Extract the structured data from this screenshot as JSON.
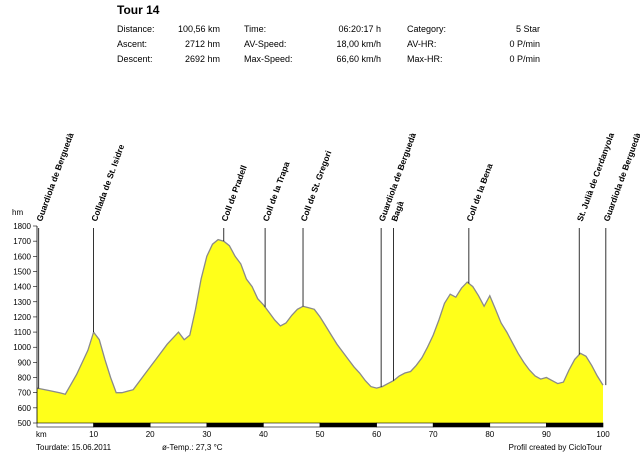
{
  "header": {
    "title": "Tour 14",
    "stats": [
      {
        "label": "Distance:",
        "value": "100,56 km"
      },
      {
        "label": "Ascent:",
        "value": "2712 hm"
      },
      {
        "label": "Descent:",
        "value": "2692 hm"
      },
      {
        "label": "Time:",
        "value": "06:20:17 h"
      },
      {
        "label": "AV-Speed:",
        "value": "18,00 km/h"
      },
      {
        "label": "Max-Speed:",
        "value": "66,60 km/h"
      },
      {
        "label": "Category:",
        "value": "5 Star"
      },
      {
        "label": "AV-HR:",
        "value": "0 P/min"
      },
      {
        "label": "Max-HR:",
        "value": "0 P/min"
      }
    ]
  },
  "footer": {
    "tourdate": "Tourdate: 15.06.2011",
    "temp": "ø-Temp.: 27,3 °C",
    "credit": "Profil created by CicloTour"
  },
  "chart_data": {
    "type": "area",
    "xlabel": "km",
    "ylabel": "hm",
    "xlim": [
      0,
      100
    ],
    "ylim": [
      500,
      1800
    ],
    "x_ticks": [
      10,
      20,
      30,
      40,
      50,
      60,
      70,
      80,
      90,
      100
    ],
    "y_ticks": [
      500,
      600,
      700,
      800,
      900,
      1000,
      1100,
      1200,
      1300,
      1400,
      1500,
      1600,
      1700,
      1800
    ],
    "fill_color": "#ffff1a",
    "line_color": "#8a8a8a",
    "series": [
      {
        "x": [
          0,
          2,
          4,
          5,
          7,
          9,
          10,
          11,
          12,
          13,
          14,
          15,
          17,
          19,
          21,
          23,
          25,
          26,
          27,
          28,
          29,
          30,
          31,
          32,
          33,
          34,
          35,
          36,
          37,
          38,
          39,
          40,
          41,
          42,
          43,
          44,
          45,
          46,
          47,
          48,
          49,
          50,
          51,
          52,
          53,
          54,
          55,
          56,
          57,
          58,
          59,
          60,
          61,
          62,
          63,
          64,
          65,
          66,
          67,
          68,
          69,
          70,
          71,
          72,
          73,
          74,
          75,
          76,
          77,
          78,
          79,
          80,
          81,
          82,
          83,
          84,
          85,
          86,
          87,
          88,
          89,
          90,
          91,
          92,
          93,
          94,
          95,
          96,
          97,
          98,
          99,
          100
        ],
        "values": [
          730,
          715,
          700,
          690,
          820,
          980,
          1100,
          1050,
          920,
          800,
          700,
          700,
          720,
          820,
          920,
          1020,
          1100,
          1050,
          1080,
          1250,
          1450,
          1600,
          1680,
          1710,
          1700,
          1670,
          1600,
          1550,
          1450,
          1400,
          1320,
          1280,
          1230,
          1180,
          1140,
          1160,
          1210,
          1250,
          1270,
          1260,
          1250,
          1200,
          1140,
          1080,
          1020,
          970,
          920,
          870,
          830,
          780,
          740,
          730,
          740,
          760,
          780,
          810,
          830,
          840,
          880,
          930,
          1000,
          1080,
          1180,
          1290,
          1350,
          1330,
          1390,
          1430,
          1400,
          1340,
          1270,
          1340,
          1250,
          1160,
          1100,
          1030,
          960,
          900,
          850,
          810,
          790,
          800,
          780,
          760,
          770,
          850,
          920,
          960,
          940,
          880,
          810,
          750
        ]
      }
    ],
    "annotations": [
      {
        "label": "Guardiola de Berguedà",
        "km": 0.3
      },
      {
        "label": "Collada de St. Isidre",
        "km": 10
      },
      {
        "label": "Coll de Pradell",
        "km": 33
      },
      {
        "label": "Coll de la Trapa",
        "km": 40.3
      },
      {
        "label": "Coll de St. Gregori",
        "km": 47
      },
      {
        "label": "Guardiola de Berguedà",
        "km": 60.8
      },
      {
        "label": "Bagà",
        "km": 63
      },
      {
        "label": "Coll de la Bena",
        "km": 76.3
      },
      {
        "label": "St. Julià de Cerdanyola",
        "km": 95.8
      },
      {
        "label": "Guardiola de Berguedà",
        "km": 100.5
      }
    ]
  }
}
